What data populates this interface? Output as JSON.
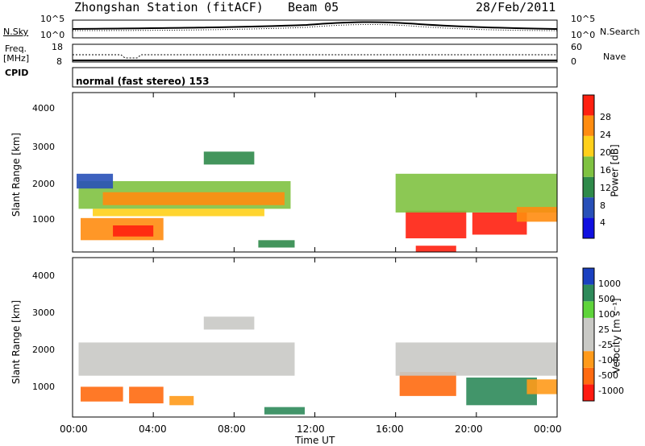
{
  "header": {
    "title": "Zhongshan Station (fitACF)",
    "beam": "Beam 05",
    "date": "28/Feb/2011"
  },
  "noise_panel": {
    "left_label": "N.Sky",
    "left_ticks": [
      "10^5",
      "10^0"
    ],
    "right_label": "N.Search",
    "right_ticks": [
      "10^5",
      "10^0"
    ]
  },
  "freq_panel": {
    "left_label_line1": "Freq.",
    "left_label_line2": "[MHz]",
    "left_ticks": [
      "18",
      "8"
    ],
    "right_label": "Nave",
    "right_ticks": [
      "60",
      "0"
    ]
  },
  "cpid": {
    "label": "CPID",
    "mode": "normal (fast stereo) 153"
  },
  "power_panel": {
    "ylabel": "Slant Range [km]",
    "yticks": [
      "1000",
      "2000",
      "3000",
      "4000"
    ],
    "colorbar_label": "Power [dB]",
    "colorbar_ticks": [
      "4",
      "8",
      "12",
      "16",
      "20",
      "24",
      "28"
    ],
    "colors": [
      "#1010e0",
      "#2850b8",
      "#2f8a4a",
      "#7fc241",
      "#ffd01a",
      "#ff8c10",
      "#ff2010"
    ]
  },
  "velocity_panel": {
    "ylabel": "Slant Range [km]",
    "yticks": [
      "1000",
      "2000",
      "3000",
      "4000"
    ],
    "colorbar_label": "Velocity [m s⁻¹]",
    "colorbar_ticks": [
      "-1000",
      "-500",
      "-100",
      "-25",
      "25",
      "100",
      "500",
      "1000"
    ],
    "colors": [
      "#ff1a10",
      "#ff6a10",
      "#ff9a1a",
      "#c9c9c5",
      "#c9c9c5",
      "#5ed43a",
      "#2e8a5a",
      "#1a40c0"
    ]
  },
  "time_axis": {
    "xlabel": "Time UT",
    "ticks": [
      "00:00",
      "04:00",
      "08:00",
      "12:00",
      "16:00",
      "20:00",
      "00:00"
    ]
  },
  "chart_data": {
    "type": "heatmap",
    "x_range_hours": [
      0,
      24
    ],
    "y_range_km": [
      180,
      4500
    ],
    "power_regions": [
      {
        "t0": 0.3,
        "t1": 10.8,
        "r0": 1350,
        "r1": 2100,
        "level": 3
      },
      {
        "t0": 1.5,
        "t1": 10.5,
        "r0": 1450,
        "r1": 1800,
        "level": 5
      },
      {
        "t0": 1.0,
        "t1": 9.5,
        "r0": 1150,
        "r1": 1350,
        "level": 4
      },
      {
        "t0": 0.4,
        "t1": 4.5,
        "r0": 500,
        "r1": 1100,
        "level": 5
      },
      {
        "t0": 2.0,
        "t1": 4.0,
        "r0": 600,
        "r1": 900,
        "level": 6
      },
      {
        "t0": 0.2,
        "t1": 2.0,
        "r0": 1900,
        "r1": 2300,
        "level": 1
      },
      {
        "t0": 6.5,
        "t1": 9.0,
        "r0": 2550,
        "r1": 2900,
        "level": 2
      },
      {
        "t0": 9.2,
        "t1": 11.0,
        "r0": 300,
        "r1": 500,
        "level": 2
      },
      {
        "t0": 16.5,
        "t1": 19.5,
        "r0": 550,
        "r1": 1300,
        "level": 6
      },
      {
        "t0": 19.8,
        "t1": 22.5,
        "r0": 650,
        "r1": 1250,
        "level": 6
      },
      {
        "t0": 16.0,
        "t1": 24.0,
        "r0": 1250,
        "r1": 2300,
        "level": 3
      },
      {
        "t0": 22.0,
        "t1": 24.0,
        "r0": 1000,
        "r1": 1400,
        "level": 5
      },
      {
        "t0": 17.0,
        "t1": 19.0,
        "r0": 180,
        "r1": 350,
        "level": 6
      }
    ],
    "velocity_regions": [
      {
        "t0": 0.3,
        "t1": 11.0,
        "r0": 1300,
        "r1": 2200,
        "level": 3
      },
      {
        "t0": 6.5,
        "t1": 9.0,
        "r0": 2550,
        "r1": 2900,
        "level": 3
      },
      {
        "t0": 0.4,
        "t1": 2.5,
        "r0": 600,
        "r1": 1000,
        "level": 1
      },
      {
        "t0": 2.8,
        "t1": 4.5,
        "r0": 550,
        "r1": 1000,
        "level": 1
      },
      {
        "t0": 4.8,
        "t1": 6.0,
        "r0": 500,
        "r1": 750,
        "level": 2
      },
      {
        "t0": 9.5,
        "t1": 11.5,
        "r0": 250,
        "r1": 450,
        "level": 6
      },
      {
        "t0": 16.2,
        "t1": 19.0,
        "r0": 750,
        "r1": 1400,
        "level": 1
      },
      {
        "t0": 19.5,
        "t1": 23.0,
        "r0": 500,
        "r1": 1250,
        "level": 6
      },
      {
        "t0": 16.0,
        "t1": 24.0,
        "r0": 1300,
        "r1": 2200,
        "level": 3
      },
      {
        "t0": 22.5,
        "t1": 24.0,
        "r0": 800,
        "r1": 1200,
        "level": 2
      }
    ]
  }
}
